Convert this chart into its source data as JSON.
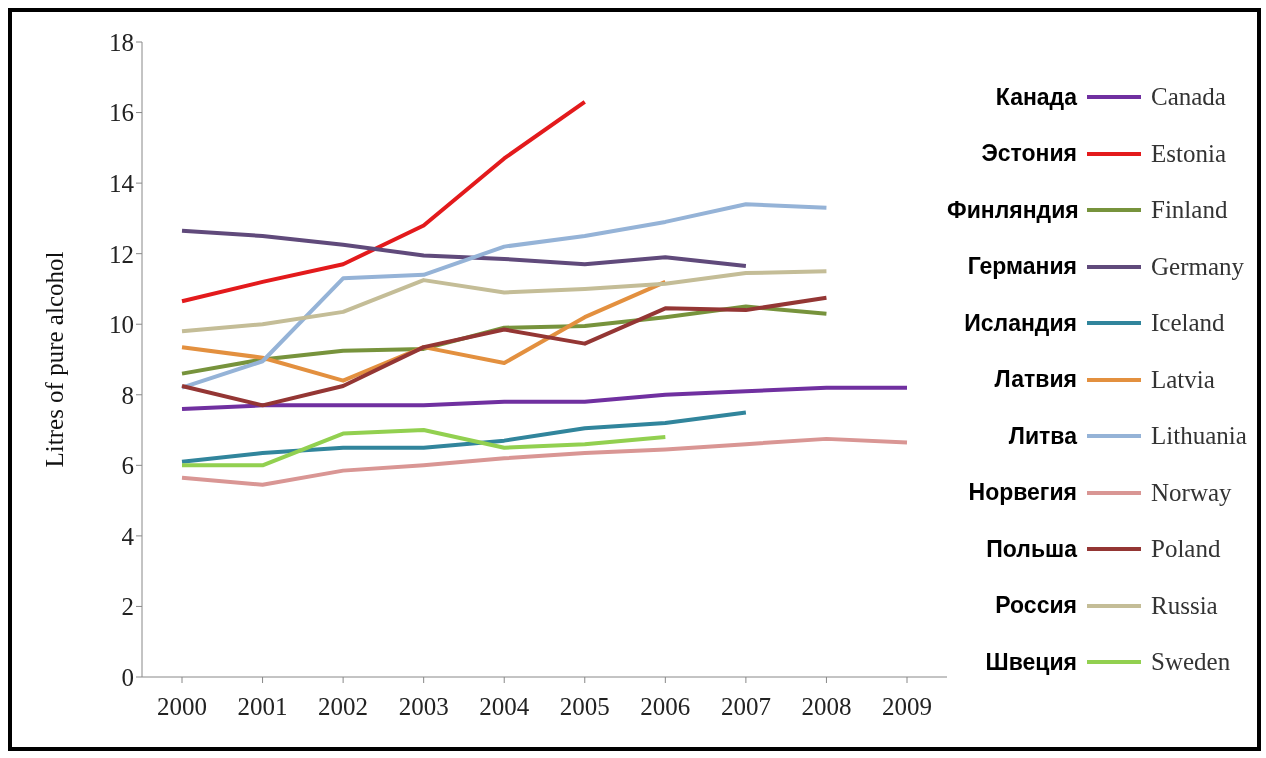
{
  "chart_data": {
    "type": "line",
    "ylabel": "Litres of pure alcohol",
    "categories": [
      "2000",
      "2001",
      "2002",
      "2003",
      "2004",
      "2005",
      "2006",
      "2007",
      "2008",
      "2009"
    ],
    "ylim": [
      0,
      18
    ],
    "yticks": [
      0,
      2,
      4,
      6,
      8,
      10,
      12,
      14,
      16,
      18
    ],
    "legend": "right",
    "marker": "none",
    "line_style": "solid",
    "series": [
      {
        "name": "Canada",
        "color": "#7030a0",
        "values": [
          7.6,
          7.7,
          7.7,
          7.7,
          7.8,
          7.8,
          8.0,
          8.1,
          8.2,
          8.2
        ]
      },
      {
        "name": "Estonia",
        "color": "#e31a1c",
        "values": [
          10.65,
          11.2,
          11.7,
          12.8,
          14.7,
          16.3,
          null,
          null,
          null,
          null
        ]
      },
      {
        "name": "Finland",
        "color": "#77933c",
        "values": [
          8.6,
          9.0,
          9.25,
          9.3,
          9.9,
          9.95,
          10.2,
          10.5,
          10.3,
          null
        ]
      },
      {
        "name": "Germany",
        "color": "#604a7b",
        "values": [
          12.65,
          12.5,
          12.25,
          11.95,
          11.85,
          11.7,
          11.9,
          11.65,
          null,
          null
        ]
      },
      {
        "name": "Iceland",
        "color": "#31859c",
        "values": [
          6.1,
          6.35,
          6.5,
          6.5,
          6.7,
          7.05,
          7.2,
          7.5,
          null,
          null
        ]
      },
      {
        "name": "Latvia",
        "color": "#e3903f",
        "values": [
          9.35,
          9.05,
          8.4,
          9.35,
          8.9,
          10.2,
          11.2,
          null,
          null,
          null
        ]
      },
      {
        "name": "Lithuania",
        "color": "#95b3d7",
        "values": [
          8.2,
          8.95,
          11.3,
          11.4,
          12.2,
          12.5,
          12.9,
          13.4,
          13.3,
          null
        ]
      },
      {
        "name": "Norway",
        "color": "#d99694",
        "values": [
          5.65,
          5.45,
          5.85,
          6.0,
          6.2,
          6.35,
          6.45,
          6.6,
          6.75,
          6.65
        ]
      },
      {
        "name": "Poland",
        "color": "#943634",
        "values": [
          8.25,
          7.7,
          8.25,
          9.35,
          9.85,
          9.45,
          10.45,
          10.4,
          10.75,
          null
        ]
      },
      {
        "name": "Russia",
        "color": "#c4bd97",
        "values": [
          9.8,
          10.0,
          10.35,
          11.25,
          10.9,
          11.0,
          11.15,
          11.45,
          11.5,
          null
        ]
      },
      {
        "name": "Sweden",
        "color": "#92d050",
        "values": [
          6.0,
          6.0,
          6.9,
          7.0,
          6.5,
          6.6,
          6.8,
          null,
          null,
          null
        ]
      }
    ],
    "annotations": [
      "Канада",
      "Эстония",
      "Финляндия",
      "Германия",
      "Исландия",
      "Латвия",
      "Литва",
      "Норвегия",
      "Польша",
      "Россия",
      "Швеция"
    ]
  }
}
